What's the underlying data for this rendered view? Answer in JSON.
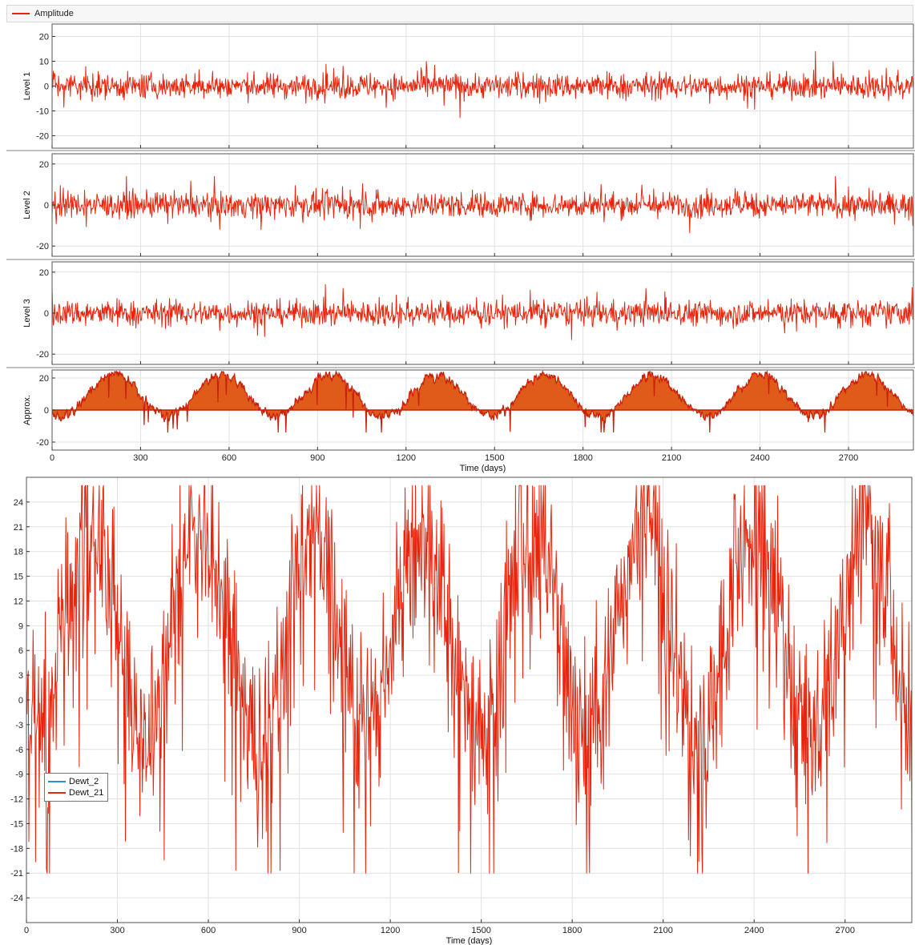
{
  "top_legend": {
    "label": "Amplitude",
    "color": "#e8240c"
  },
  "colors": {
    "signal": "#e8240c",
    "fill": "#e05a1a",
    "grid": "#e2e2e2",
    "frame": "#555555",
    "blue": "#2a8fd6"
  },
  "chart_data": [
    {
      "type": "line",
      "ylabel": "Level 1",
      "xlim": [
        0,
        2920
      ],
      "ylim": [
        -25,
        25
      ],
      "yticks": [
        20,
        10,
        0,
        -10,
        -20
      ],
      "xticks": [
        0,
        300,
        600,
        900,
        1200,
        1500,
        1800,
        2100,
        2400,
        2700
      ],
      "show_xticklabels": false,
      "amplitude": 4.5,
      "series": [
        {
          "values_note_only": ""
        }
      ]
    },
    {
      "type": "line",
      "ylabel": "Level 2",
      "xlim": [
        0,
        2920
      ],
      "ylim": [
        -25,
        25
      ],
      "yticks": [
        20,
        0,
        -20
      ],
      "xticks": [
        0,
        300,
        600,
        900,
        1200,
        1500,
        1800,
        2100,
        2400,
        2700
      ],
      "show_xticklabels": false,
      "amplitude": 5.5
    },
    {
      "type": "line",
      "ylabel": "Level 3",
      "xlim": [
        0,
        2920
      ],
      "ylim": [
        -25,
        25
      ],
      "yticks": [
        20,
        0,
        -20
      ],
      "xticks": [
        0,
        300,
        600,
        900,
        1200,
        1500,
        1800,
        2100,
        2400,
        2700
      ],
      "show_xticklabels": false,
      "amplitude": 5.5
    },
    {
      "type": "area",
      "ylabel": "Approx.",
      "xlim": [
        0,
        2920
      ],
      "ylim": [
        -25,
        25
      ],
      "yticks": [
        20,
        0,
        -20
      ],
      "xticks": [
        0,
        300,
        600,
        900,
        1200,
        1500,
        1800,
        2100,
        2400,
        2700
      ],
      "show_xticklabels": true,
      "xlabel": "Time (days)"
    },
    {
      "type": "line",
      "xlabel": "Time (days)",
      "xlim": [
        0,
        2920
      ],
      "ylim": [
        -27,
        27
      ],
      "yticks": [
        24,
        21,
        18,
        15,
        12,
        9,
        6,
        3,
        0,
        -3,
        -6,
        -9,
        -12,
        -15,
        -18,
        -21,
        -24
      ],
      "xticks": [
        0,
        300,
        600,
        900,
        1200,
        1500,
        1800,
        2100,
        2400,
        2700
      ],
      "show_xticklabels": true,
      "series": [
        {
          "name": "Dewt_2",
          "color": "#2a8fd6"
        },
        {
          "name": "Dewt_21",
          "color": "#e8240c"
        }
      ]
    }
  ]
}
